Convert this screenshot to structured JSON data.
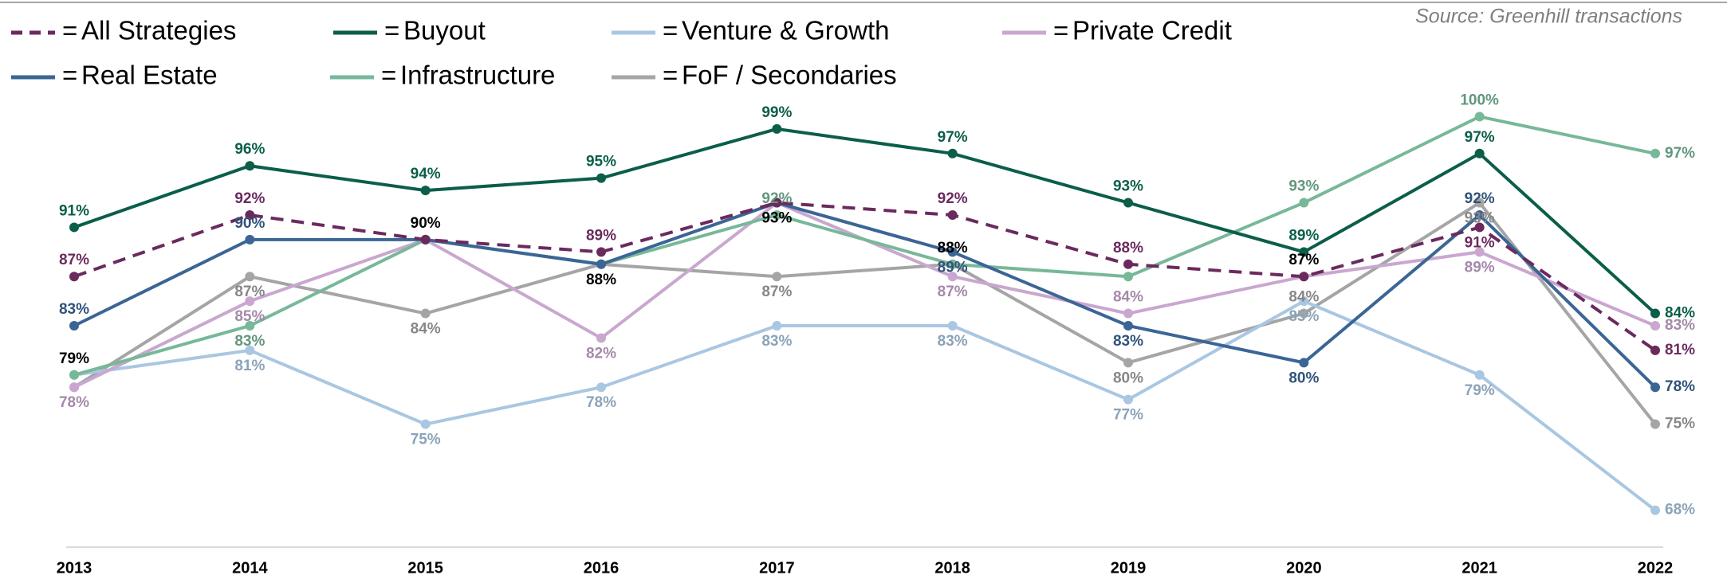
{
  "chart_data": {
    "type": "line",
    "source": "Source: Greenhill transactions",
    "legend_separator": "=",
    "categories": [
      "2013",
      "2014",
      "2015",
      "2016",
      "2017",
      "2018",
      "2019",
      "2020",
      "2021",
      "2022"
    ],
    "ylim": [
      65,
      101
    ],
    "grid": false,
    "series": [
      {
        "name": "All Strategies",
        "color": "#6b2a5e",
        "style": "dashed",
        "values": [
          87,
          92,
          90,
          89,
          93,
          92,
          88,
          87,
          91,
          81
        ],
        "value_labels": [
          "87%",
          "92%",
          null,
          "89%",
          null,
          "92%",
          "88%",
          null,
          "91%",
          "81%"
        ]
      },
      {
        "name": "Buyout",
        "color": "#0b5e4a",
        "style": "solid",
        "values": [
          91,
          96,
          94,
          95,
          99,
          97,
          93,
          89,
          97,
          84
        ],
        "value_labels": [
          "91%",
          "96%",
          "94%",
          "95%",
          "99%",
          "97%",
          "93%",
          "89%",
          "97%",
          "84%"
        ]
      },
      {
        "name": "Venture & Growth",
        "color": "#a9c7e2",
        "style": "solid",
        "values": [
          79,
          81,
          75,
          78,
          83,
          83,
          77,
          85,
          79,
          68
        ],
        "value_labels": [
          null,
          "81%",
          "75%",
          "78%",
          "83%",
          "83%",
          "77%",
          "85%",
          "79%",
          "68%"
        ]
      },
      {
        "name": "Private Credit",
        "color": "#c9a7cf",
        "style": "solid",
        "values": [
          78,
          85,
          90,
          82,
          93,
          87,
          84,
          87,
          89,
          83
        ],
        "value_labels": [
          "78%",
          "85%",
          null,
          "82%",
          null,
          "87%",
          "84%",
          null,
          "89%",
          "83%"
        ]
      },
      {
        "name": "Real Estate",
        "color": "#3b6595",
        "style": "solid",
        "values": [
          83,
          90,
          90,
          88,
          93,
          89,
          83,
          80,
          92,
          78
        ],
        "value_labels": [
          "83%",
          "90%",
          null,
          null,
          null,
          "89%",
          "83%",
          "80%",
          "92%",
          "78%"
        ]
      },
      {
        "name": "Infrastructure",
        "color": "#77b899",
        "style": "solid",
        "values": [
          79,
          83,
          90,
          88,
          92,
          88,
          87,
          93,
          100,
          97
        ],
        "value_labels": [
          null,
          "83%",
          null,
          null,
          "92%",
          null,
          null,
          "93%",
          "100%",
          "97%"
        ]
      },
      {
        "name": "FoF / Secondaries",
        "color": "#a5a5a5",
        "style": "solid",
        "values": [
          78,
          87,
          84,
          88,
          87,
          88,
          80,
          84,
          93,
          75
        ],
        "value_labels": [
          null,
          "87%",
          "84%",
          null,
          "87%",
          null,
          "80%",
          "84%",
          "93%",
          "75%"
        ]
      }
    ],
    "annotations": [
      {
        "x": "2013",
        "label": "79%",
        "value": 79
      },
      {
        "x": "2015",
        "label": "90%",
        "value": 90
      },
      {
        "x": "2016",
        "label": "88%",
        "value": 88
      },
      {
        "x": "2017",
        "label": "93%",
        "value": 93
      },
      {
        "x": "2018",
        "label": "88%",
        "value": 88
      },
      {
        "x": "2020",
        "label": "87%",
        "value": 87
      }
    ]
  }
}
